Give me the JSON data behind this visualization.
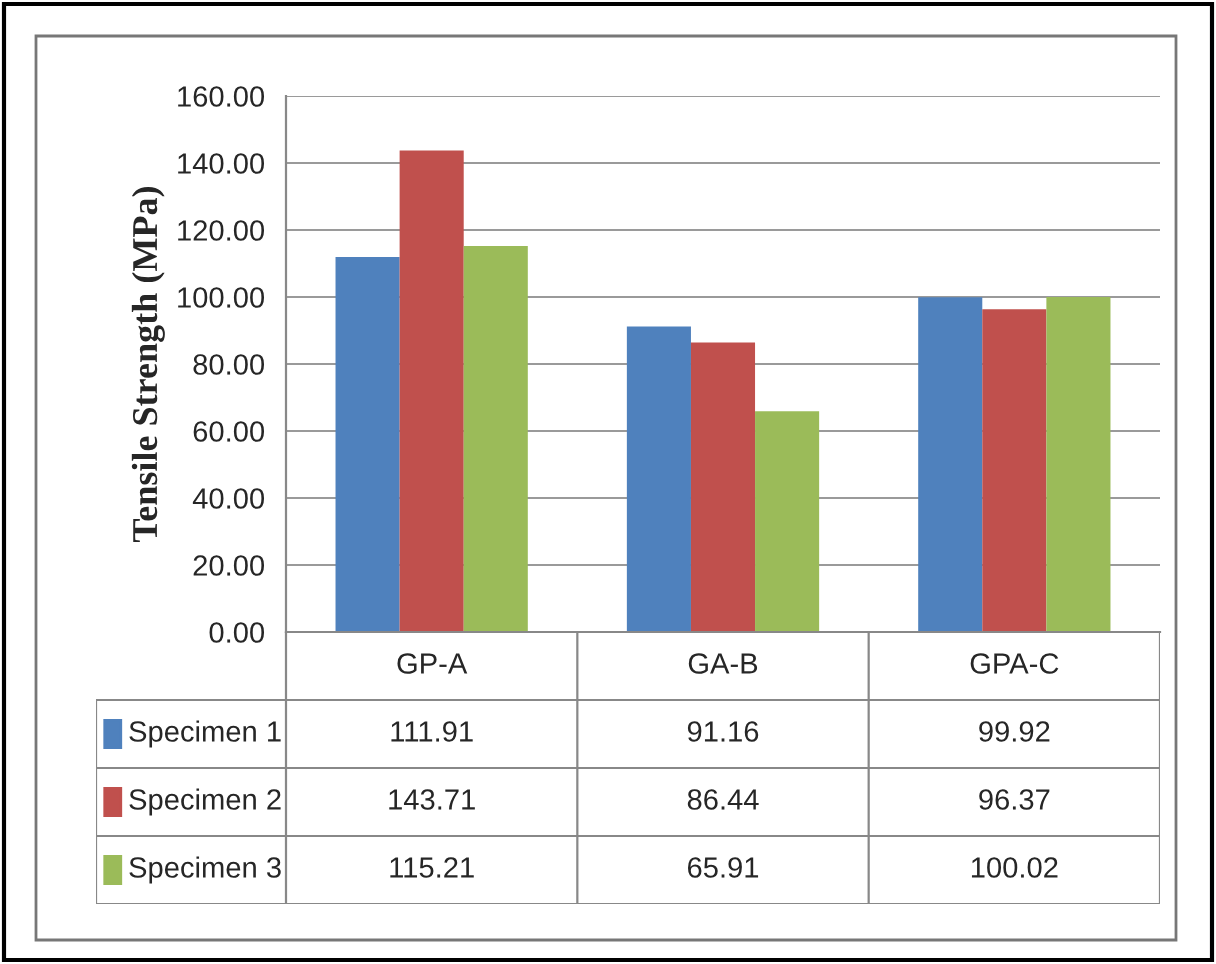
{
  "chart_data": {
    "type": "bar",
    "ylabel": "Tensile Strength (MPa)",
    "categories": [
      "GP-A",
      "GA-B",
      "GPA-C"
    ],
    "series": [
      {
        "name": "Specimen 1",
        "color": "#4f81bd",
        "values": [
          111.91,
          91.16,
          99.92
        ]
      },
      {
        "name": "Specimen 2",
        "color": "#c0504d",
        "values": [
          143.71,
          86.44,
          96.37
        ]
      },
      {
        "name": "Specimen 3",
        "color": "#9bbb59",
        "values": [
          115.21,
          65.91,
          100.02
        ]
      }
    ],
    "ylim": [
      0,
      160
    ],
    "yticks": [
      {
        "value": 0,
        "label": "0.00"
      },
      {
        "value": 20,
        "label": "20.00"
      },
      {
        "value": 40,
        "label": "40.00"
      },
      {
        "value": 60,
        "label": "60.00"
      },
      {
        "value": 80,
        "label": "80.00"
      },
      {
        "value": 100,
        "label": "100.00"
      },
      {
        "value": 120,
        "label": "120.00"
      },
      {
        "value": 140,
        "label": "140.00"
      },
      {
        "value": 160,
        "label": "160.00"
      }
    ],
    "grid": "y",
    "data_labels": true,
    "legend": "bottom"
  }
}
